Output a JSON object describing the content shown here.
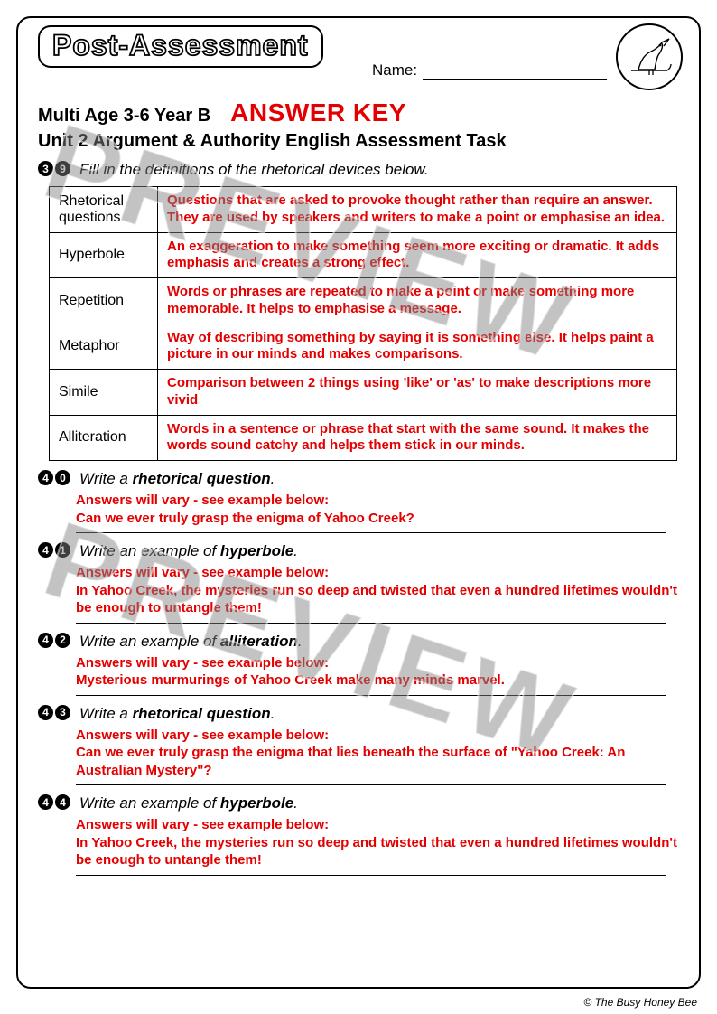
{
  "header": {
    "title": "Post-Assessment",
    "name_label": "Name:",
    "subtitle_left": "Multi Age 3-6 Year B",
    "answer_key": "ANSWER KEY",
    "unit_line": "Unit 2 Argument & Authority English Assessment Task"
  },
  "watermark": "PREVIEW",
  "footer": "© The Busy Honey Bee",
  "colors": {
    "answer_red": "#e40000",
    "border_black": "#000000",
    "watermark_gray": "rgba(130,130,130,0.48)"
  },
  "q39": {
    "num": [
      "3",
      "9"
    ],
    "prompt": "Fill in the definitions of the rhetorical devices below.",
    "rows": [
      {
        "term": "Rhetorical questions",
        "def": "Questions that are asked to provoke thought rather than require an answer. They are used by speakers and writers to make a point or emphasise an idea."
      },
      {
        "term": "Hyperbole",
        "def": "An exaggeration to make something seem more exciting or dramatic. It adds emphasis and creates a strong effect."
      },
      {
        "term": "Repetition",
        "def": "Words or phrases are repeated to make a point or make something more memorable. It helps to emphasise a message."
      },
      {
        "term": "Metaphor",
        "def": "Way of describing something by saying it is something else. It helps paint a picture in our minds and makes comparisons."
      },
      {
        "term": "Simile",
        "def": "Comparison between 2 things using 'like' or 'as' to make descriptions more vivid"
      },
      {
        "term": "Alliteration",
        "def": "Words in a sentence or phrase that start with the same sound. It makes the words sound catchy and helps them stick in our minds."
      }
    ]
  },
  "questions": [
    {
      "num": [
        "4",
        "0"
      ],
      "prompt_prefix": "Write a ",
      "prompt_bold": "rhetorical question",
      "prompt_suffix": ".",
      "answer": "Answers will vary - see example below:\nCan we ever truly grasp the enigma of Yahoo Creek?"
    },
    {
      "num": [
        "4",
        "1"
      ],
      "prompt_prefix": "Write an example of ",
      "prompt_bold": "hyperbole",
      "prompt_suffix": ".",
      "answer": "Answers will vary - see example below:\nIn Yahoo Creek, the mysteries run so deep and twisted that even a hundred lifetimes wouldn't be enough to untangle them!"
    },
    {
      "num": [
        "4",
        "2"
      ],
      "prompt_prefix": "Write an example of ",
      "prompt_bold": "alliteration",
      "prompt_suffix": ".",
      "answer": "Answers will vary - see example below:\nMysterious murmurings of Yahoo Creek make many minds marvel."
    },
    {
      "num": [
        "4",
        "3"
      ],
      "prompt_prefix": "Write a ",
      "prompt_bold": "rhetorical question",
      "prompt_suffix": ".",
      "answer": "Answers will vary - see example below:\nCan we ever truly grasp the enigma that lies beneath the surface of \"Yahoo Creek: An Australian Mystery\"?"
    },
    {
      "num": [
        "4",
        "4"
      ],
      "prompt_prefix": "Write an example of ",
      "prompt_bold": "hyperbole",
      "prompt_suffix": ".",
      "answer": "Answers will vary - see example below:\nIn Yahoo Creek, the mysteries run so deep and twisted that even a hundred lifetimes wouldn't be enough to untangle them!"
    }
  ]
}
